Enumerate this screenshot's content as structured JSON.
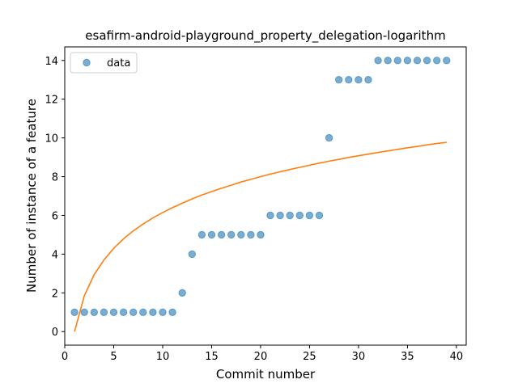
{
  "chart_data": {
    "type": "scatter",
    "title": "esafirm-android-playground_property_delegation-logarithm",
    "xlabel": "Commit number",
    "ylabel": "Number of instance of a feature",
    "xlim": [
      0,
      41
    ],
    "ylim": [
      -0.7,
      14.7
    ],
    "xticks": [
      0,
      5,
      10,
      15,
      20,
      25,
      30,
      35,
      40
    ],
    "yticks": [
      0,
      2,
      4,
      6,
      8,
      10,
      12,
      14
    ],
    "grid": false,
    "legend": {
      "placement": "top-left",
      "entries": [
        "data"
      ]
    },
    "series": [
      {
        "name": "data",
        "kind": "scatter",
        "color": "#1f77b4",
        "x": [
          1,
          2,
          3,
          4,
          5,
          6,
          7,
          8,
          9,
          10,
          11,
          12,
          13,
          14,
          15,
          16,
          17,
          18,
          19,
          20,
          21,
          22,
          23,
          24,
          25,
          26,
          27,
          28,
          29,
          30,
          31,
          32,
          33,
          34,
          35,
          36,
          37,
          38,
          39
        ],
        "y": [
          1,
          1,
          1,
          1,
          1,
          1,
          1,
          1,
          1,
          1,
          1,
          2,
          4,
          5,
          5,
          5,
          5,
          5,
          5,
          5,
          6,
          6,
          6,
          6,
          6,
          6,
          10,
          13,
          13,
          13,
          13,
          14,
          14,
          14,
          14,
          14,
          14,
          14,
          14
        ]
      },
      {
        "kind": "line",
        "color": "#ff7f0e",
        "x": [
          1,
          2,
          3,
          4,
          5,
          6,
          7,
          8,
          9,
          10,
          11,
          12,
          13,
          14,
          15,
          16,
          17,
          18,
          19,
          20,
          21,
          22,
          23,
          24,
          25,
          26,
          27,
          28,
          29,
          30,
          31,
          32,
          33,
          34,
          35,
          36,
          37,
          38,
          39
        ],
        "y": [
          0.0,
          1.85,
          2.94,
          3.7,
          4.3,
          4.79,
          5.2,
          5.55,
          5.87,
          6.15,
          6.4,
          6.63,
          6.85,
          7.05,
          7.23,
          7.4,
          7.56,
          7.72,
          7.86,
          8.0,
          8.13,
          8.25,
          8.37,
          8.48,
          8.59,
          8.7,
          8.8,
          8.89,
          8.99,
          9.08,
          9.16,
          9.25,
          9.33,
          9.41,
          9.49,
          9.56,
          9.64,
          9.71,
          9.77
        ]
      }
    ]
  }
}
